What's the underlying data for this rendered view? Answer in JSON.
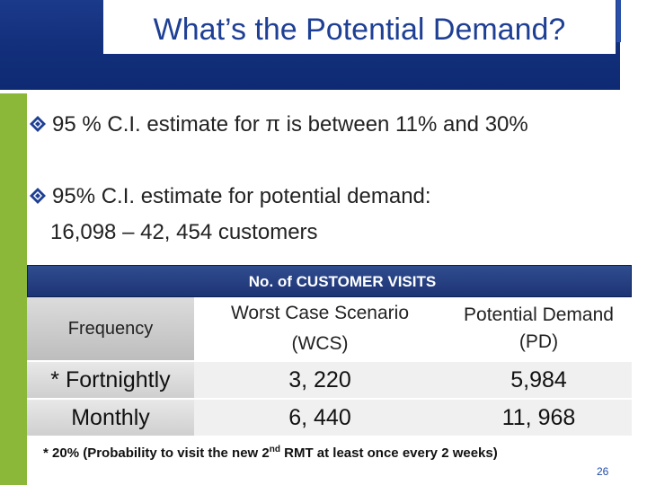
{
  "title": "What’s the Potential Demand?",
  "bullets": [
    {
      "icon": "diamond-bullet-icon",
      "text": "95 % C.I. estimate for π is between 11% and 30%"
    },
    {
      "icon": "diamond-bullet-icon",
      "text": "95% C.I. estimate for potential demand:"
    }
  ],
  "bullet2_subline": "16,098 – 42, 454 customers",
  "table": {
    "group_header": "No. of CUSTOMER VISITS",
    "col_frequency": "Frequency",
    "col_wcs_line1": "Worst Case Scenario",
    "col_wcs_line2": "(WCS)",
    "col_pd_line1": "Potential Demand",
    "col_pd_line2": "(PD)",
    "rows": [
      {
        "frequency": "* Fortnightly",
        "wcs": "3, 220",
        "pd": "5,984"
      },
      {
        "frequency": "Monthly",
        "wcs": "6, 440",
        "pd": "11, 968"
      }
    ]
  },
  "footnote": {
    "before": "* 20% (Probability to visit the new 2",
    "sup": "nd",
    "after": " RMT at least once every 2 weeks)"
  },
  "page_number": "26",
  "colors": {
    "title_text": "#1e3f94",
    "title_bar": "#13307d",
    "accent_green": "#8cb83a",
    "bullet": "#1e3f94",
    "page_number": "#1f4aa8"
  }
}
